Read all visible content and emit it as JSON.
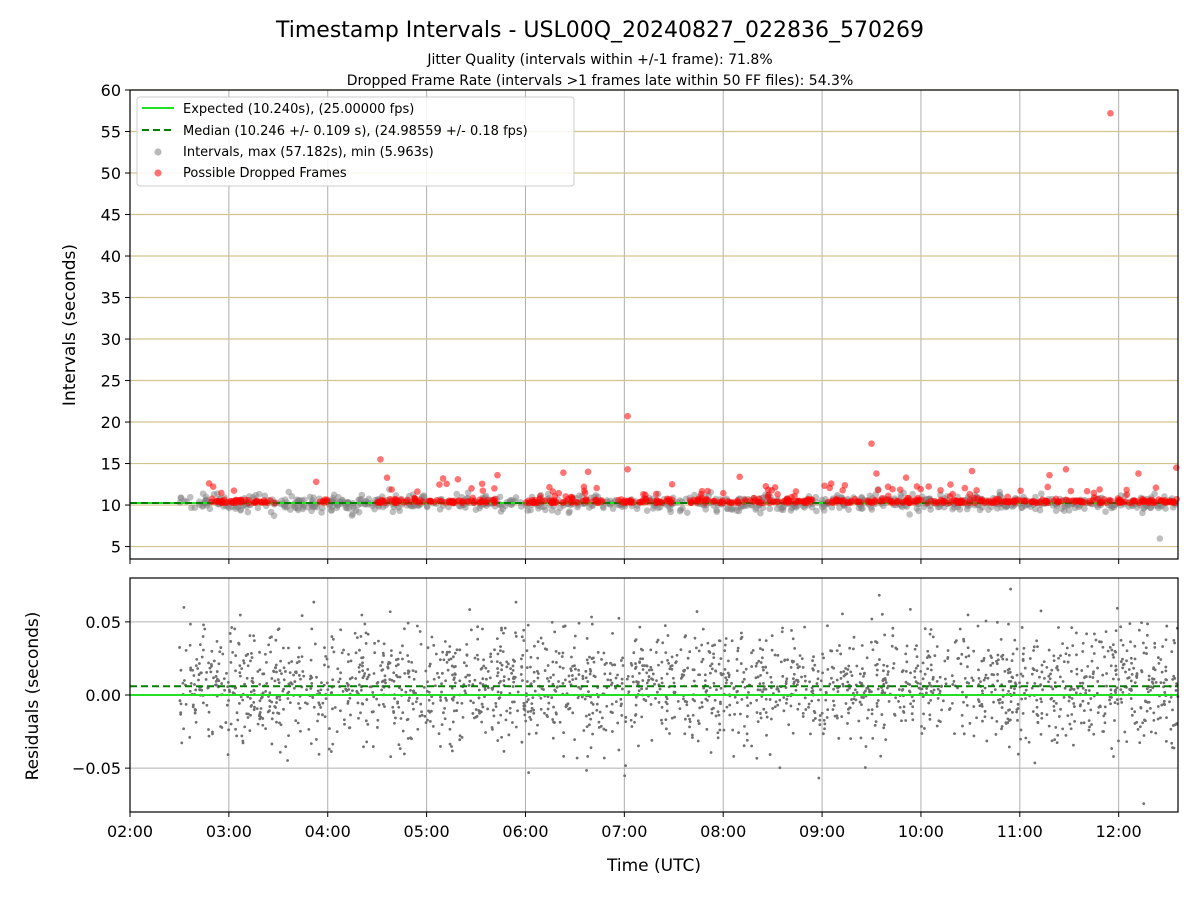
{
  "chart_data": {
    "type": "scatter",
    "title": "Timestamp Intervals - USL00Q_20240827_022836_570269",
    "subtitle_lines": [
      "Jitter Quality (intervals within +/-1 frame): 71.8%",
      "Dropped Frame Rate (intervals >1 frames late within 50 FF files): 54.3%"
    ],
    "xlabel": "Time (UTC)",
    "x_range": [
      "02:00",
      "12:36"
    ],
    "x_ticks": [
      "02:00",
      "03:00",
      "04:00",
      "05:00",
      "06:00",
      "07:00",
      "08:00",
      "09:00",
      "10:00",
      "11:00",
      "12:00"
    ],
    "grid": true,
    "legend_position": "top-left",
    "panels": [
      {
        "name": "intervals",
        "ylabel": "Intervals (seconds)",
        "ylim": [
          3.5,
          60
        ],
        "y_ticks": [
          5,
          10,
          15,
          20,
          25,
          30,
          35,
          40,
          45,
          50,
          55,
          60
        ],
        "horizontal_grid_color": "#d2c48c",
        "series": [
          {
            "name": "Expected (10.240s), (25.00000 fps)",
            "kind": "line",
            "style": "solid",
            "color": "#22e022",
            "value": 10.24
          },
          {
            "name": "Median (10.246 +/- 0.109 s), (24.98559 +/- 0.18 fps)",
            "kind": "line",
            "style": "dashed",
            "color": "#008000",
            "value": 10.246
          },
          {
            "name": "Intervals, max (57.182s), min (5.963s)",
            "kind": "scatter",
            "color": "#808080",
            "max": 57.182,
            "min": 5.963,
            "time_range": [
              "02:30",
              "12:36"
            ]
          },
          {
            "name": "Possible Dropped Frames",
            "kind": "scatter",
            "color": "#ff0000",
            "notable_points": [
              {
                "x": "11:55",
                "y": 57.2
              },
              {
                "x": "07:02",
                "y": 20.7
              },
              {
                "x": "09:30",
                "y": 17.4
              },
              {
                "x": "04:32",
                "y": 15.5
              },
              {
                "x": "12:35",
                "y": 14.5
              },
              {
                "x": "11:28",
                "y": 14.3
              },
              {
                "x": "07:02",
                "y": 14.3
              },
              {
                "x": "10:31",
                "y": 14.1
              },
              {
                "x": "06:38",
                "y": 14.0
              },
              {
                "x": "06:23",
                "y": 13.9
              },
              {
                "x": "09:33",
                "y": 13.8
              },
              {
                "x": "12:12",
                "y": 13.8
              },
              {
                "x": "11:18",
                "y": 13.6
              },
              {
                "x": "05:43",
                "y": 13.6
              },
              {
                "x": "08:10",
                "y": 13.4
              },
              {
                "x": "04:36",
                "y": 13.3
              },
              {
                "x": "09:51",
                "y": 13.3
              },
              {
                "x": "05:19",
                "y": 13.1
              },
              {
                "x": "05:10",
                "y": 13.2
              },
              {
                "x": "02:48",
                "y": 12.6
              },
              {
                "x": "03:53",
                "y": 12.8
              }
            ]
          }
        ]
      },
      {
        "name": "residuals",
        "ylabel": "Residuals (seconds)",
        "ylim": [
          -0.08,
          0.08
        ],
        "y_ticks": [
          -0.05,
          0.0,
          0.05
        ],
        "y_tick_labels": [
          "−0.05",
          "0.00",
          "0.05"
        ],
        "expected_line": 0.0,
        "median_line": 0.006,
        "points_color": "#707070",
        "points_time_range": [
          "02:30",
          "12:36"
        ],
        "points_spread": 0.02
      }
    ]
  }
}
